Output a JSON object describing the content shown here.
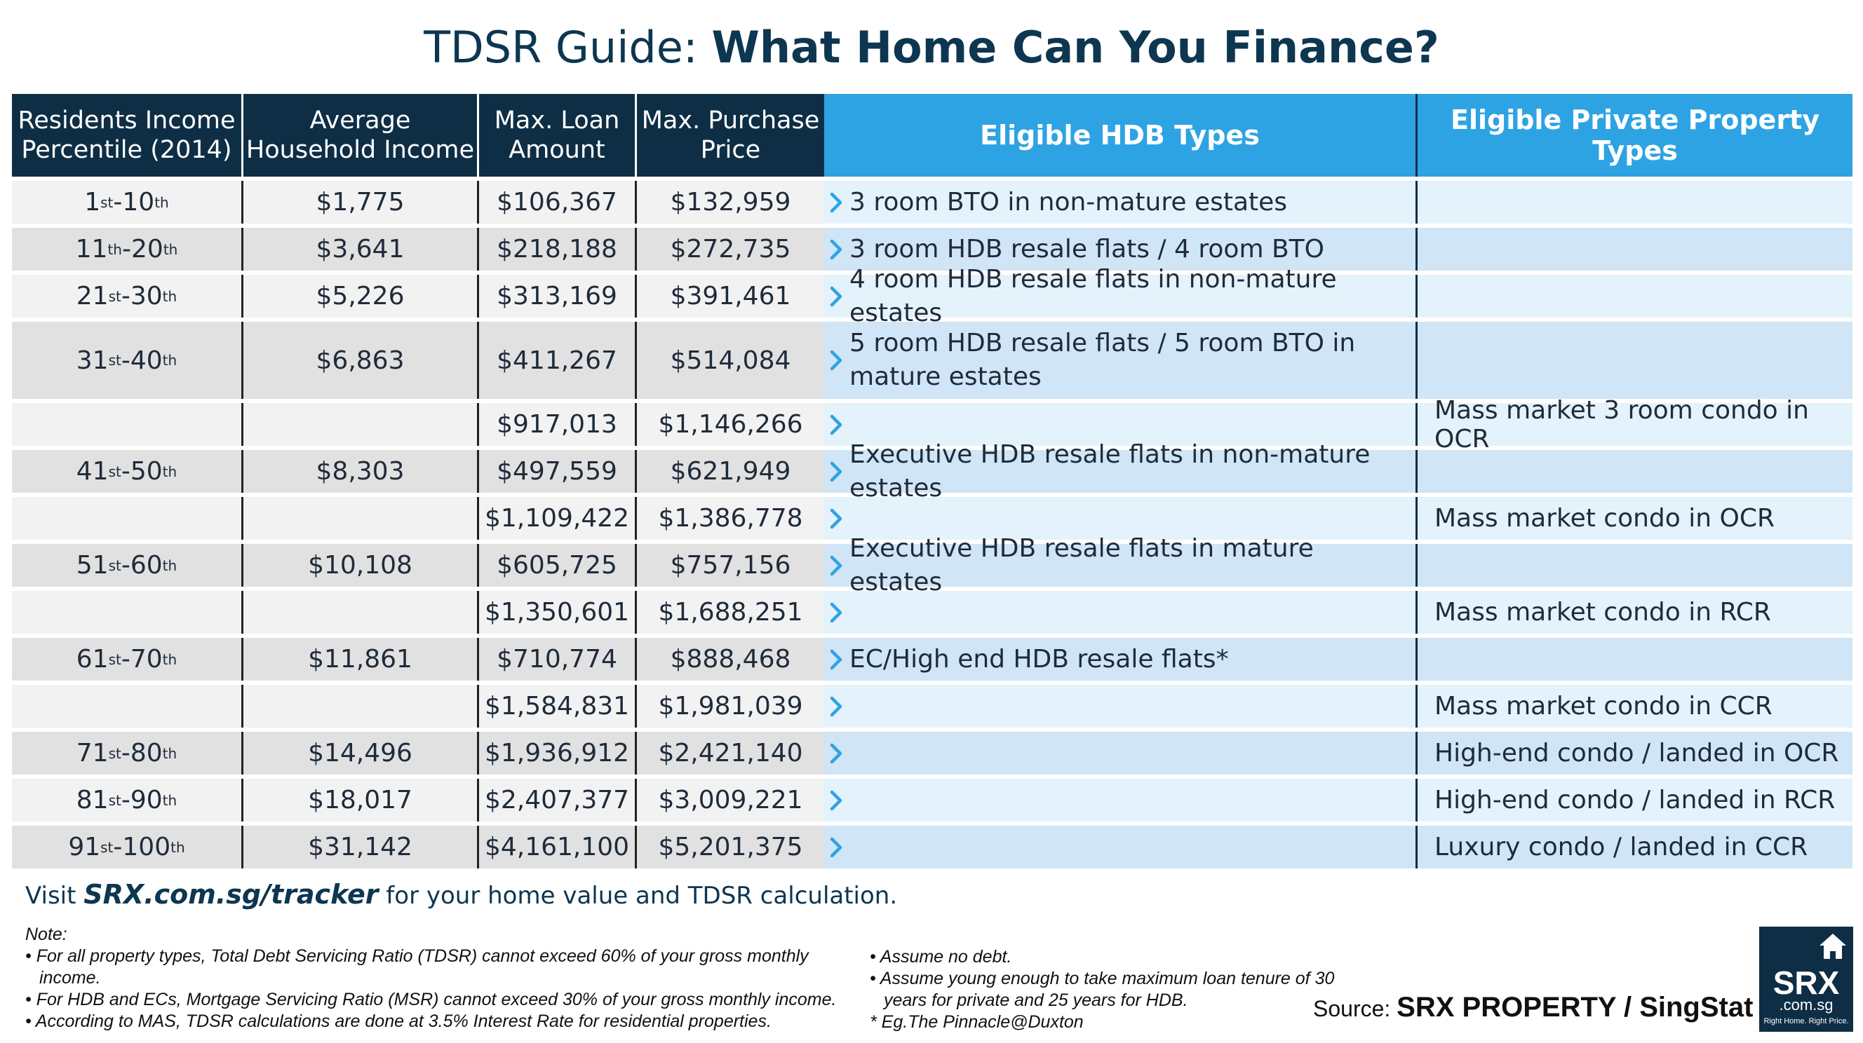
{
  "title": {
    "part1": "TDSR Guide: ",
    "part2": "What Home Can You Finance?"
  },
  "headers": {
    "percentile": [
      "Residents Income",
      "Percentile (2014)"
    ],
    "income": [
      "Average",
      "Household Income"
    ],
    "loan": [
      "Max. Loan",
      "Amount"
    ],
    "price": [
      "Max. Purchase",
      "Price"
    ],
    "hdb": "Eligible HDB Types",
    "private": "Eligible Private Property Types"
  },
  "rows": [
    {
      "pct": "1",
      "pct_sup": "st",
      "pct2": "10",
      "pct2_sup": "th",
      "income": "$1,775",
      "loan": "$106,367",
      "price": "$132,959",
      "hdb": "3 room BTO in non-mature estates",
      "private": ""
    },
    {
      "pct": "11",
      "pct_sup": "th",
      "pct2": "20",
      "pct2_sup": "th",
      "income": "$3,641",
      "loan": "$218,188",
      "price": "$272,735",
      "hdb": "3 room HDB resale flats / 4 room BTO",
      "private": ""
    },
    {
      "pct": "21",
      "pct_sup": "st",
      "pct2": "30",
      "pct2_sup": "th",
      "income": "$5,226",
      "loan": "$313,169",
      "price": "$391,461",
      "hdb": "4 room HDB resale flats in non-mature estates",
      "private": ""
    },
    {
      "pct": "31",
      "pct_sup": "st",
      "pct2": "40",
      "pct2_sup": "th",
      "income": "$6,863",
      "loan": "$411,267",
      "price": "$514,084",
      "hdb": "5 room HDB resale flats / 5 room BTO in mature estates",
      "private": "",
      "tall": true
    },
    {
      "pct": "",
      "income": "",
      "loan": "$917,013",
      "price": "$1,146,266",
      "hdb": "",
      "private": "Mass market 3 room condo in OCR"
    },
    {
      "pct": "41",
      "pct_sup": "st",
      "pct2": "50",
      "pct2_sup": "th",
      "income": "$8,303",
      "loan": "$497,559",
      "price": "$621,949",
      "hdb": "Executive HDB resale flats in non-mature estates",
      "private": ""
    },
    {
      "pct": "",
      "income": "",
      "loan": "$1,109,422",
      "price": "$1,386,778",
      "hdb": "",
      "private": "Mass market condo in OCR"
    },
    {
      "pct": "51",
      "pct_sup": "st",
      "pct2": "60",
      "pct2_sup": "th",
      "income": "$10,108",
      "loan": "$605,725",
      "price": "$757,156",
      "hdb": "Executive HDB resale flats in mature estates",
      "private": ""
    },
    {
      "pct": "",
      "income": "",
      "loan": "$1,350,601",
      "price": "$1,688,251",
      "hdb": "",
      "private": "Mass market condo in RCR"
    },
    {
      "pct": "61",
      "pct_sup": "st",
      "pct2": "70",
      "pct2_sup": "th",
      "income": "$11,861",
      "loan": "$710,774",
      "price": "$888,468",
      "hdb": "EC/High end HDB resale flats*",
      "private": ""
    },
    {
      "pct": "",
      "income": "",
      "loan": "$1,584,831",
      "price": "$1,981,039",
      "hdb": "",
      "private": "Mass market condo in CCR"
    },
    {
      "pct": "71",
      "pct_sup": "st",
      "pct2": "80",
      "pct2_sup": "th",
      "income": "$14,496",
      "loan": "$1,936,912",
      "price": "$2,421,140",
      "hdb": "",
      "private": "High-end condo / landed in OCR"
    },
    {
      "pct": "81",
      "pct_sup": "st",
      "pct2": "90",
      "pct2_sup": "th",
      "income": "$18,017",
      "loan": "$2,407,377",
      "price": "$3,009,221",
      "hdb": "",
      "private": "High-end condo / landed in RCR"
    },
    {
      "pct": "91",
      "pct_sup": "st",
      "pct2": "100",
      "pct2_sup": "th",
      "income": "$31,142",
      "loan": "$4,161,100",
      "price": "$5,201,375",
      "hdb": "",
      "private": "Luxury condo / landed in CCR"
    }
  ],
  "visit": {
    "prefix": "Visit ",
    "link": "SRX.com.sg/tracker",
    "suffix": " for your home value and TDSR calculation."
  },
  "notes": {
    "heading": "Note:",
    "left": [
      "• For all property types, Total Debt Servicing Ratio (TDSR) cannot exceed 60% of your gross monthly income.",
      "• For HDB and ECs, Mortgage Servicing Ratio (MSR) cannot exceed 30% of your gross monthly income.",
      "• According to MAS, TDSR calculations are done at 3.5% Interest Rate for residential properties."
    ],
    "right": [
      "• Assume no debt.",
      "• Assume young enough to take maximum loan tenure of 30 years for private and 25 years for HDB.",
      "* Eg.The Pinnacle@Duxton"
    ]
  },
  "source": {
    "label": "Source: ",
    "value": "SRX PROPERTY / SingStat"
  },
  "logo": {
    "name": "SRX",
    "domain": ".com.sg",
    "tagline": "Right Home. Right Price."
  },
  "icons": {
    "row_marker": "chevron-right-icon",
    "logo_mark": "house-icon"
  }
}
